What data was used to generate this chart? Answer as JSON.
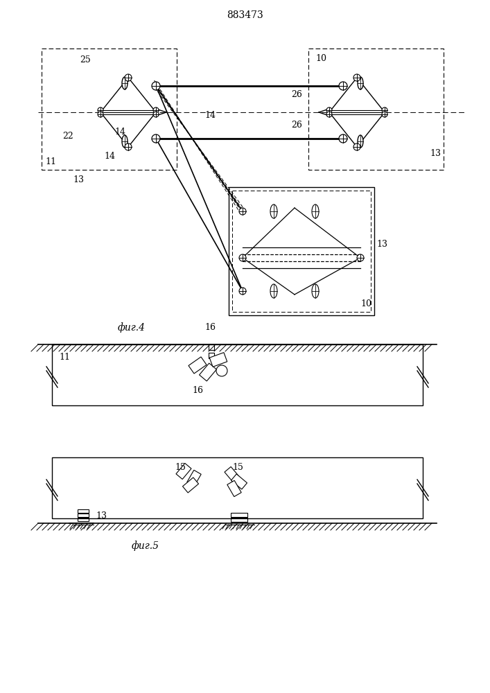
{
  "title": "883473",
  "title_fontsize": 11,
  "fig4_label": "фиг.4",
  "fig5_label": "фиг.5",
  "bg_color": "#ffffff",
  "line_color": "#000000",
  "fig_width": 7.07,
  "fig_height": 10.0
}
